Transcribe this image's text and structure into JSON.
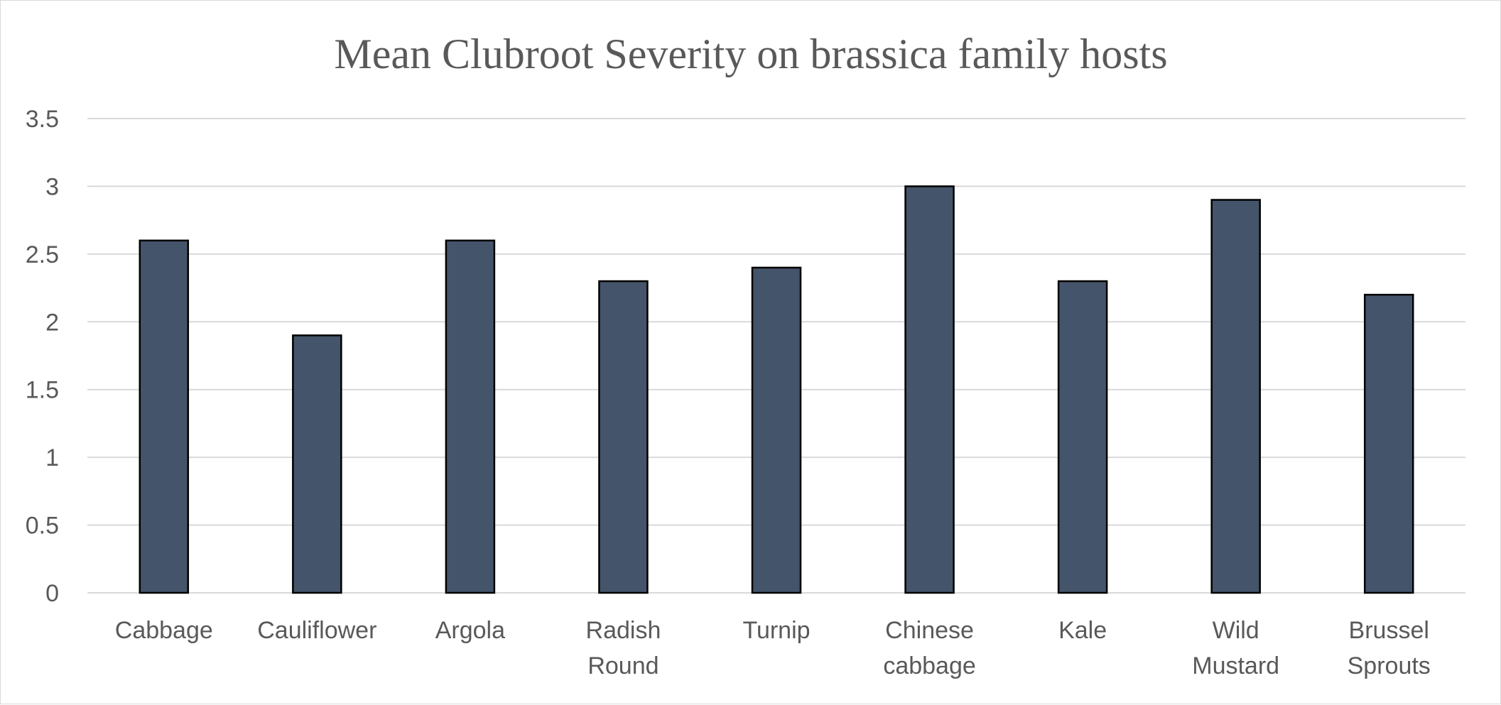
{
  "chart_data": {
    "type": "bar",
    "title": "Mean Clubroot Severity on brassica family hosts",
    "xlabel": "",
    "ylabel": "",
    "categories": [
      [
        "Cabbage"
      ],
      [
        "Cauliflower"
      ],
      [
        "Argola"
      ],
      [
        "Radish",
        "Round"
      ],
      [
        "Turnip"
      ],
      [
        "Chinese",
        "cabbage"
      ],
      [
        "Kale"
      ],
      [
        "Wild",
        "Mustard"
      ],
      [
        "Brussel",
        "Sprouts"
      ]
    ],
    "values": [
      2.6,
      1.9,
      2.6,
      2.3,
      2.4,
      3.0,
      2.3,
      2.9,
      2.2
    ],
    "ylim": [
      0,
      3.5
    ],
    "yticks": [
      "0",
      "0.5",
      "1",
      "1.5",
      "2",
      "2.5",
      "3",
      "3.5"
    ],
    "grid": true,
    "legend": "none",
    "bar_color": "#44546a"
  }
}
